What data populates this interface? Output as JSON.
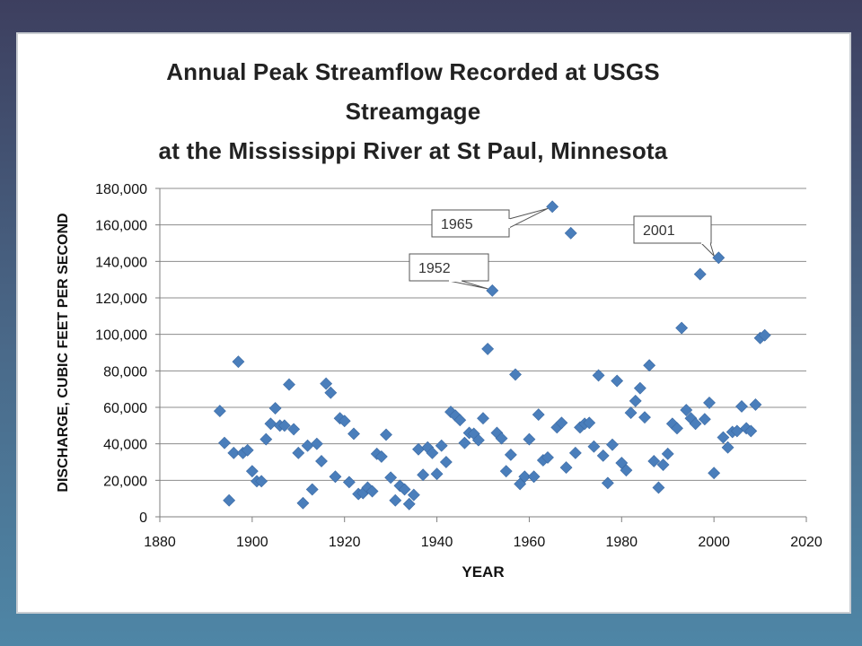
{
  "colors": {
    "marker": "#4a7ebb",
    "grid": "#8c8c8c",
    "axis": "#7f7f7f"
  },
  "chart_data": {
    "type": "scatter",
    "title_lines": [
      "Annual Peak Streamflow Recorded at USGS",
      "Streamgage",
      "at the Mississippi River at St Paul, Minnesota"
    ],
    "xlabel": "YEAR",
    "ylabel": "DISCHARGE, CUBIC FEET PER SECOND",
    "xlim": [
      1880,
      2020
    ],
    "ylim": [
      0,
      180000
    ],
    "xticks": [
      1880,
      1900,
      1920,
      1940,
      1960,
      1980,
      2000,
      2020
    ],
    "yticks": [
      0,
      20000,
      40000,
      60000,
      80000,
      100000,
      120000,
      140000,
      160000,
      180000
    ],
    "ytick_labels": [
      "0",
      "20,000",
      "40,000",
      "60,000",
      "80,000",
      "100,000",
      "120,000",
      "140,000",
      "160,000",
      "180,000"
    ],
    "grid": "horizontal",
    "legend": "none",
    "annotations": [
      {
        "text": "1965",
        "x": 1965,
        "y": 170000
      },
      {
        "text": "2001",
        "x": 2001,
        "y": 142000
      },
      {
        "text": "1952",
        "x": 1952,
        "y": 124000
      }
    ],
    "points": [
      [
        1893,
        58000
      ],
      [
        1894,
        40500
      ],
      [
        1895,
        9000
      ],
      [
        1896,
        35000
      ],
      [
        1897,
        85000
      ],
      [
        1898,
        35000
      ],
      [
        1899,
        36500
      ],
      [
        1900,
        25000
      ],
      [
        1901,
        19500
      ],
      [
        1902,
        19500
      ],
      [
        1903,
        42500
      ],
      [
        1904,
        51000
      ],
      [
        1905,
        59500
      ],
      [
        1906,
        50000
      ],
      [
        1907,
        50000
      ],
      [
        1908,
        72500
      ],
      [
        1909,
        48000
      ],
      [
        1910,
        35000
      ],
      [
        1911,
        7500
      ],
      [
        1912,
        39000
      ],
      [
        1913,
        15000
      ],
      [
        1914,
        40000
      ],
      [
        1915,
        30500
      ],
      [
        1916,
        73000
      ],
      [
        1917,
        68000
      ],
      [
        1918,
        22000
      ],
      [
        1919,
        54000
      ],
      [
        1920,
        52500
      ],
      [
        1921,
        19000
      ],
      [
        1922,
        45500
      ],
      [
        1923,
        12500
      ],
      [
        1924,
        13000
      ],
      [
        1925,
        16000
      ],
      [
        1926,
        14000
      ],
      [
        1927,
        34500
      ],
      [
        1928,
        33000
      ],
      [
        1929,
        45000
      ],
      [
        1930,
        21500
      ],
      [
        1931,
        9000
      ],
      [
        1932,
        17000
      ],
      [
        1933,
        15000
      ],
      [
        1934,
        7000
      ],
      [
        1935,
        12000
      ],
      [
        1936,
        37000
      ],
      [
        1937,
        23000
      ],
      [
        1938,
        38000
      ],
      [
        1939,
        35000
      ],
      [
        1940,
        23500
      ],
      [
        1941,
        39000
      ],
      [
        1942,
        30000
      ],
      [
        1943,
        57500
      ],
      [
        1944,
        55500
      ],
      [
        1945,
        53000
      ],
      [
        1946,
        40500
      ],
      [
        1947,
        46000
      ],
      [
        1948,
        45500
      ],
      [
        1949,
        42000
      ],
      [
        1950,
        54000
      ],
      [
        1951,
        92000
      ],
      [
        1952,
        124000
      ],
      [
        1953,
        46000
      ],
      [
        1954,
        43000
      ],
      [
        1955,
        25000
      ],
      [
        1956,
        34000
      ],
      [
        1957,
        78000
      ],
      [
        1958,
        18000
      ],
      [
        1959,
        22000
      ],
      [
        1960,
        42500
      ],
      [
        1961,
        22000
      ],
      [
        1962,
        56000
      ],
      [
        1963,
        31000
      ],
      [
        1964,
        32500
      ],
      [
        1965,
        170000
      ],
      [
        1966,
        49000
      ],
      [
        1967,
        51500
      ],
      [
        1968,
        27000
      ],
      [
        1969,
        155500
      ],
      [
        1970,
        35000
      ],
      [
        1971,
        49000
      ],
      [
        1972,
        51000
      ],
      [
        1973,
        51500
      ],
      [
        1974,
        38500
      ],
      [
        1975,
        77500
      ],
      [
        1976,
        33500
      ],
      [
        1977,
        18500
      ],
      [
        1978,
        39500
      ],
      [
        1979,
        74500
      ],
      [
        1980,
        29500
      ],
      [
        1981,
        25500
      ],
      [
        1982,
        57000
      ],
      [
        1983,
        63500
      ],
      [
        1984,
        70500
      ],
      [
        1985,
        54500
      ],
      [
        1986,
        83000
      ],
      [
        1987,
        30500
      ],
      [
        1988,
        16000
      ],
      [
        1989,
        28500
      ],
      [
        1990,
        34500
      ],
      [
        1991,
        51000
      ],
      [
        1992,
        48500
      ],
      [
        1993,
        103500
      ],
      [
        1994,
        58500
      ],
      [
        1995,
        54000
      ],
      [
        1996,
        51000
      ],
      [
        1997,
        133000
      ],
      [
        1998,
        53500
      ],
      [
        1999,
        62500
      ],
      [
        2000,
        24000
      ],
      [
        2001,
        142000
      ],
      [
        2002,
        43500
      ],
      [
        2003,
        38000
      ],
      [
        2004,
        46500
      ],
      [
        2005,
        47000
      ],
      [
        2006,
        60500
      ],
      [
        2007,
        48500
      ],
      [
        2008,
        47000
      ],
      [
        2009,
        61500
      ],
      [
        2010,
        98000
      ],
      [
        2011,
        99500
      ]
    ]
  }
}
